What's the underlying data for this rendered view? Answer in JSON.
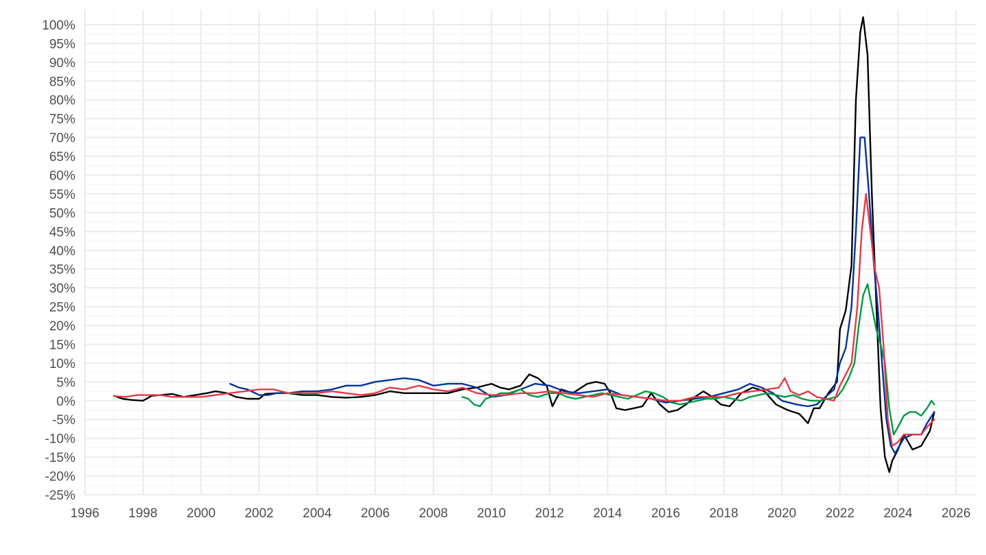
{
  "chart_data": {
    "type": "line",
    "title": "",
    "xlabel": "",
    "ylabel": "",
    "xlim": [
      1996,
      2026.7
    ],
    "ylim": [
      -25,
      104
    ],
    "x_ticks": [
      1996,
      1998,
      2000,
      2002,
      2004,
      2006,
      2008,
      2010,
      2012,
      2014,
      2016,
      2018,
      2020,
      2022,
      2024,
      2026
    ],
    "x_tick_labels": [
      "1996",
      "1998",
      "2000",
      "2002",
      "2004",
      "2006",
      "2008",
      "2010",
      "2012",
      "2014",
      "2016",
      "2018",
      "2020",
      "2022",
      "2024",
      "2026"
    ],
    "y_ticks": [
      -25,
      -20,
      -15,
      -10,
      -5,
      0,
      5,
      10,
      15,
      20,
      25,
      30,
      35,
      40,
      45,
      50,
      55,
      60,
      65,
      70,
      75,
      80,
      85,
      90,
      95,
      100
    ],
    "y_tick_labels": [
      "-25%",
      "-20%",
      "-15%",
      "-10%",
      "-5%",
      "0%",
      "5%",
      "10%",
      "15%",
      "20%",
      "25%",
      "30%",
      "35%",
      "40%",
      "45%",
      "50%",
      "55%",
      "60%",
      "65%",
      "70%",
      "75%",
      "80%",
      "85%",
      "90%",
      "95%",
      "100%"
    ],
    "grid": true,
    "legend": "none",
    "series": [
      {
        "color": "#000000",
        "x": [
          1997.0,
          1997.3,
          1997.6,
          1998.0,
          1998.3,
          1998.6,
          1999.0,
          1999.4,
          1999.8,
          2000.2,
          2000.5,
          2000.9,
          2001.2,
          2001.6,
          2002.0,
          2002.2,
          2002.6,
          2003.0,
          2003.5,
          2004.0,
          2004.5,
          2005.0,
          2005.5,
          2006.0,
          2006.5,
          2007.0,
          2007.5,
          2008.0,
          2008.5,
          2009.0,
          2009.5,
          2010.0,
          2010.3,
          2010.6,
          2011.0,
          2011.3,
          2011.6,
          2011.9,
          2012.1,
          2012.4,
          2012.8,
          2013.0,
          2013.3,
          2013.6,
          2013.9,
          2014.1,
          2014.3,
          2014.6,
          2014.9,
          2015.2,
          2015.5,
          2015.8,
          2016.1,
          2016.4,
          2016.7,
          2017.0,
          2017.3,
          2017.6,
          2017.9,
          2018.2,
          2018.6,
          2019.0,
          2019.4,
          2019.8,
          2020.2,
          2020.6,
          2020.9,
          2021.1,
          2021.3,
          2021.6,
          2021.9,
          2022.0,
          2022.2,
          2022.4,
          2022.55,
          2022.7,
          2022.8,
          2022.95,
          2023.1,
          2023.25,
          2023.4,
          2023.55,
          2023.7,
          2023.8,
          2024.0,
          2024.2,
          2024.5,
          2024.8,
          2025.1,
          2025.25
        ],
        "y": [
          1.3,
          0.5,
          0.2,
          0.0,
          1.3,
          1.5,
          1.8,
          1.0,
          1.5,
          2.0,
          2.5,
          2.0,
          1.0,
          0.5,
          0.5,
          1.8,
          2.0,
          2.0,
          1.5,
          1.5,
          1.0,
          0.8,
          1.0,
          1.5,
          2.5,
          2.0,
          2.0,
          2.0,
          2.0,
          3.0,
          3.5,
          4.5,
          3.5,
          3.0,
          4.0,
          7.0,
          6.0,
          4.0,
          -1.5,
          3.0,
          2.0,
          3.0,
          4.5,
          5.0,
          4.5,
          2.0,
          -2.0,
          -2.5,
          -2.0,
          -1.5,
          2.0,
          -1.0,
          -3.0,
          -2.5,
          -1.0,
          1.0,
          2.5,
          1.0,
          -1.0,
          -1.5,
          2.0,
          3.5,
          2.5,
          -1.0,
          -2.5,
          -3.5,
          -6.0,
          -2.0,
          -2.0,
          2.0,
          5.0,
          19.0,
          24.0,
          36.0,
          80.0,
          98.0,
          102.0,
          92.0,
          55.0,
          26.0,
          -2.0,
          -15.0,
          -19.0,
          -16.0,
          -13.0,
          -9.0,
          -13.0,
          -12.0,
          -8.0,
          -3.0
        ]
      },
      {
        "color": "#003399",
        "x": [
          2001.0,
          2001.3,
          2001.6,
          2002.0,
          2002.3,
          2002.6,
          2003.0,
          2003.5,
          2004.0,
          2004.5,
          2005.0,
          2005.5,
          2006.0,
          2006.5,
          2007.0,
          2007.5,
          2008.0,
          2008.5,
          2009.0,
          2009.5,
          2010.0,
          2010.5,
          2011.0,
          2011.5,
          2012.0,
          2012.5,
          2013.0,
          2013.5,
          2014.0,
          2014.5,
          2015.0,
          2015.5,
          2016.0,
          2016.5,
          2017.0,
          2017.5,
          2018.0,
          2018.5,
          2018.9,
          2019.3,
          2019.7,
          2020.0,
          2020.5,
          2020.9,
          2021.2,
          2021.5,
          2021.8,
          2022.0,
          2022.2,
          2022.4,
          2022.55,
          2022.7,
          2022.85,
          2023.0,
          2023.15,
          2023.3,
          2023.45,
          2023.6,
          2023.75,
          2023.9,
          2024.2,
          2024.5,
          2024.8,
          2025.0,
          2025.25
        ],
        "y": [
          4.5,
          3.5,
          3.0,
          1.5,
          1.5,
          2.0,
          2.0,
          2.5,
          2.5,
          3.0,
          4.0,
          4.0,
          5.0,
          5.5,
          6.0,
          5.5,
          4.0,
          4.5,
          4.5,
          3.5,
          1.0,
          1.5,
          3.0,
          4.5,
          4.0,
          2.5,
          2.0,
          2.5,
          3.0,
          1.5,
          1.0,
          0.5,
          -0.5,
          0.0,
          0.5,
          1.0,
          2.0,
          3.0,
          4.5,
          3.5,
          2.0,
          0.0,
          -1.0,
          -1.5,
          -1.0,
          1.0,
          3.0,
          10.0,
          14.0,
          25.0,
          45.0,
          70.0,
          70.0,
          55.0,
          38.0,
          25.0,
          10.0,
          -5.0,
          -12.0,
          -14.0,
          -10.0,
          -9.0,
          -9.0,
          -6.0,
          -3.0
        ]
      },
      {
        "color": "#009944",
        "x": [
          2009.0,
          2009.2,
          2009.4,
          2009.6,
          2009.8,
          2010.0,
          2010.3,
          2010.6,
          2011.0,
          2011.3,
          2011.6,
          2012.0,
          2012.3,
          2012.6,
          2012.9,
          2013.2,
          2013.5,
          2013.8,
          2014.1,
          2014.4,
          2014.7,
          2015.0,
          2015.3,
          2015.6,
          2015.9,
          2016.2,
          2016.5,
          2016.8,
          2017.1,
          2017.4,
          2017.7,
          2018.0,
          2018.3,
          2018.6,
          2018.9,
          2019.2,
          2019.5,
          2019.8,
          2020.1,
          2020.4,
          2020.7,
          2021.0,
          2021.3,
          2021.6,
          2021.9,
          2022.1,
          2022.3,
          2022.5,
          2022.65,
          2022.8,
          2022.95,
          2023.1,
          2023.25,
          2023.4,
          2023.55,
          2023.7,
          2023.85,
          2024.0,
          2024.2,
          2024.4,
          2024.6,
          2024.8,
          2025.0,
          2025.15,
          2025.25
        ],
        "y": [
          1.0,
          0.5,
          -1.0,
          -1.5,
          0.5,
          1.0,
          2.0,
          2.0,
          3.0,
          1.5,
          1.0,
          2.0,
          2.0,
          1.0,
          0.5,
          1.0,
          1.5,
          2.0,
          1.5,
          1.0,
          0.5,
          1.5,
          2.5,
          2.0,
          1.0,
          -0.5,
          -1.0,
          -0.5,
          0.0,
          0.5,
          0.5,
          1.0,
          0.5,
          0.0,
          1.0,
          1.5,
          2.0,
          1.5,
          1.0,
          1.5,
          0.5,
          0.0,
          0.0,
          0.5,
          1.0,
          3.0,
          6.0,
          10.0,
          20.0,
          28.0,
          31.0,
          25.0,
          19.0,
          15.0,
          10.0,
          -2.0,
          -9.0,
          -7.0,
          -4.0,
          -3.0,
          -3.0,
          -4.0,
          -2.0,
          0.0,
          -1.0
        ]
      },
      {
        "color": "#e63946",
        "x": [
          1997.0,
          1997.4,
          1997.8,
          1998.2,
          1998.6,
          1999.0,
          1999.5,
          2000.0,
          2000.5,
          2001.0,
          2001.5,
          2002.0,
          2002.5,
          2003.0,
          2003.5,
          2004.0,
          2004.5,
          2005.0,
          2005.5,
          2006.0,
          2006.5,
          2007.0,
          2007.5,
          2008.0,
          2008.5,
          2009.0,
          2009.5,
          2010.0,
          2010.5,
          2011.0,
          2011.5,
          2012.0,
          2012.5,
          2013.0,
          2013.5,
          2014.0,
          2014.5,
          2015.0,
          2015.5,
          2016.0,
          2016.5,
          2017.0,
          2017.5,
          2018.0,
          2018.5,
          2019.0,
          2019.5,
          2019.9,
          2020.1,
          2020.3,
          2020.6,
          2020.9,
          2021.2,
          2021.5,
          2021.8,
          2022.0,
          2022.2,
          2022.4,
          2022.6,
          2022.75,
          2022.9,
          2023.05,
          2023.2,
          2023.35,
          2023.5,
          2023.65,
          2023.8,
          2024.0,
          2024.2,
          2024.5,
          2024.8,
          2025.0,
          2025.25
        ],
        "y": [
          1.2,
          1.0,
          1.5,
          1.5,
          1.5,
          1.0,
          1.0,
          1.0,
          1.5,
          2.0,
          2.5,
          3.0,
          3.0,
          2.0,
          2.0,
          2.0,
          2.5,
          2.0,
          1.5,
          2.0,
          3.5,
          3.0,
          4.0,
          3.0,
          2.5,
          3.5,
          2.0,
          1.5,
          1.5,
          2.0,
          2.0,
          2.5,
          2.0,
          1.5,
          1.0,
          2.0,
          1.5,
          1.0,
          0.5,
          0.0,
          0.0,
          1.0,
          1.0,
          1.0,
          2.0,
          2.5,
          3.0,
          3.5,
          6.0,
          2.5,
          1.5,
          2.5,
          1.0,
          0.5,
          0.0,
          4.0,
          7.0,
          10.0,
          25.0,
          45.0,
          55.0,
          45.0,
          35.0,
          30.0,
          15.0,
          -5.0,
          -12.0,
          -11.0,
          -9.0,
          -9.0,
          -9.0,
          -7.0,
          -5.0
        ]
      }
    ]
  }
}
